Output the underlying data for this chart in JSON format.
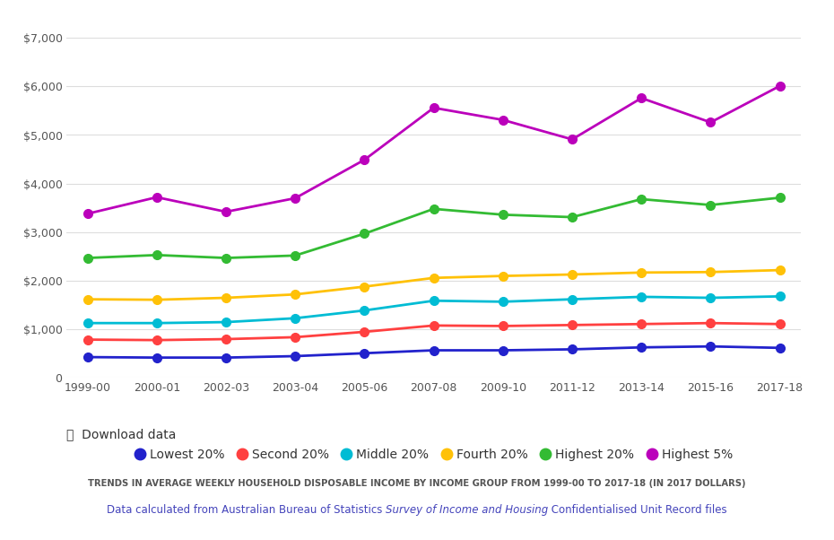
{
  "years": [
    "1999-00",
    "2000-01",
    "2002-03",
    "2003-04",
    "2005-06",
    "2007-08",
    "2009-10",
    "2011-12",
    "2013-14",
    "2015-16",
    "2017-18"
  ],
  "series": {
    "Lowest 20%": [
      430,
      420,
      420,
      450,
      510,
      570,
      570,
      590,
      630,
      650,
      620
    ],
    "Second 20%": [
      790,
      780,
      800,
      840,
      950,
      1080,
      1070,
      1090,
      1110,
      1130,
      1110
    ],
    "Middle 20%": [
      1130,
      1130,
      1150,
      1230,
      1390,
      1590,
      1570,
      1620,
      1670,
      1650,
      1680
    ],
    "Fourth 20%": [
      1620,
      1610,
      1650,
      1720,
      1880,
      2060,
      2100,
      2130,
      2170,
      2180,
      2220
    ],
    "Highest 20%": [
      2470,
      2530,
      2470,
      2520,
      2970,
      3480,
      3360,
      3310,
      3680,
      3560,
      3710
    ],
    "Highest 5%": [
      3380,
      3720,
      3420,
      3700,
      4490,
      5560,
      5310,
      4910,
      5760,
      5260,
      6010
    ]
  },
  "colors": {
    "Lowest 20%": "#2222cc",
    "Second 20%": "#ff4040",
    "Middle 20%": "#00bcd4",
    "Fourth 20%": "#ffc107",
    "Highest 20%": "#33bb33",
    "Highest 5%": "#bb00bb"
  },
  "ylim": [
    0,
    7000
  ],
  "yticks": [
    0,
    1000,
    2000,
    3000,
    4000,
    5000,
    6000,
    7000
  ],
  "ytick_labels": [
    "0",
    "$1,000",
    "$2,000",
    "$3,000",
    "$4,000",
    "$5,000",
    "$6,000",
    "$7,000"
  ],
  "title_text": "TRENDS IN AVERAGE WEEKLY HOUSEHOLD ",
  "title_underline1": "DISPOSABLE INCOME",
  "title_mid": " BY ",
  "title_underline2": "INCOME GROUP",
  "title_end": " FROM 1999-00 TO 2017-18 (IN 2017 DOLLARS)",
  "subtitle_plain1": "Data calculated from Australian Bureau of Statistics ",
  "subtitle_italic": "Survey of Income and Housing",
  "subtitle_plain2": " Confidentialised Unit Record files",
  "background_color": "#ffffff",
  "grid_color": "#dddddd",
  "marker_size": 7,
  "line_width": 2,
  "download_text": "⤓  Download data"
}
